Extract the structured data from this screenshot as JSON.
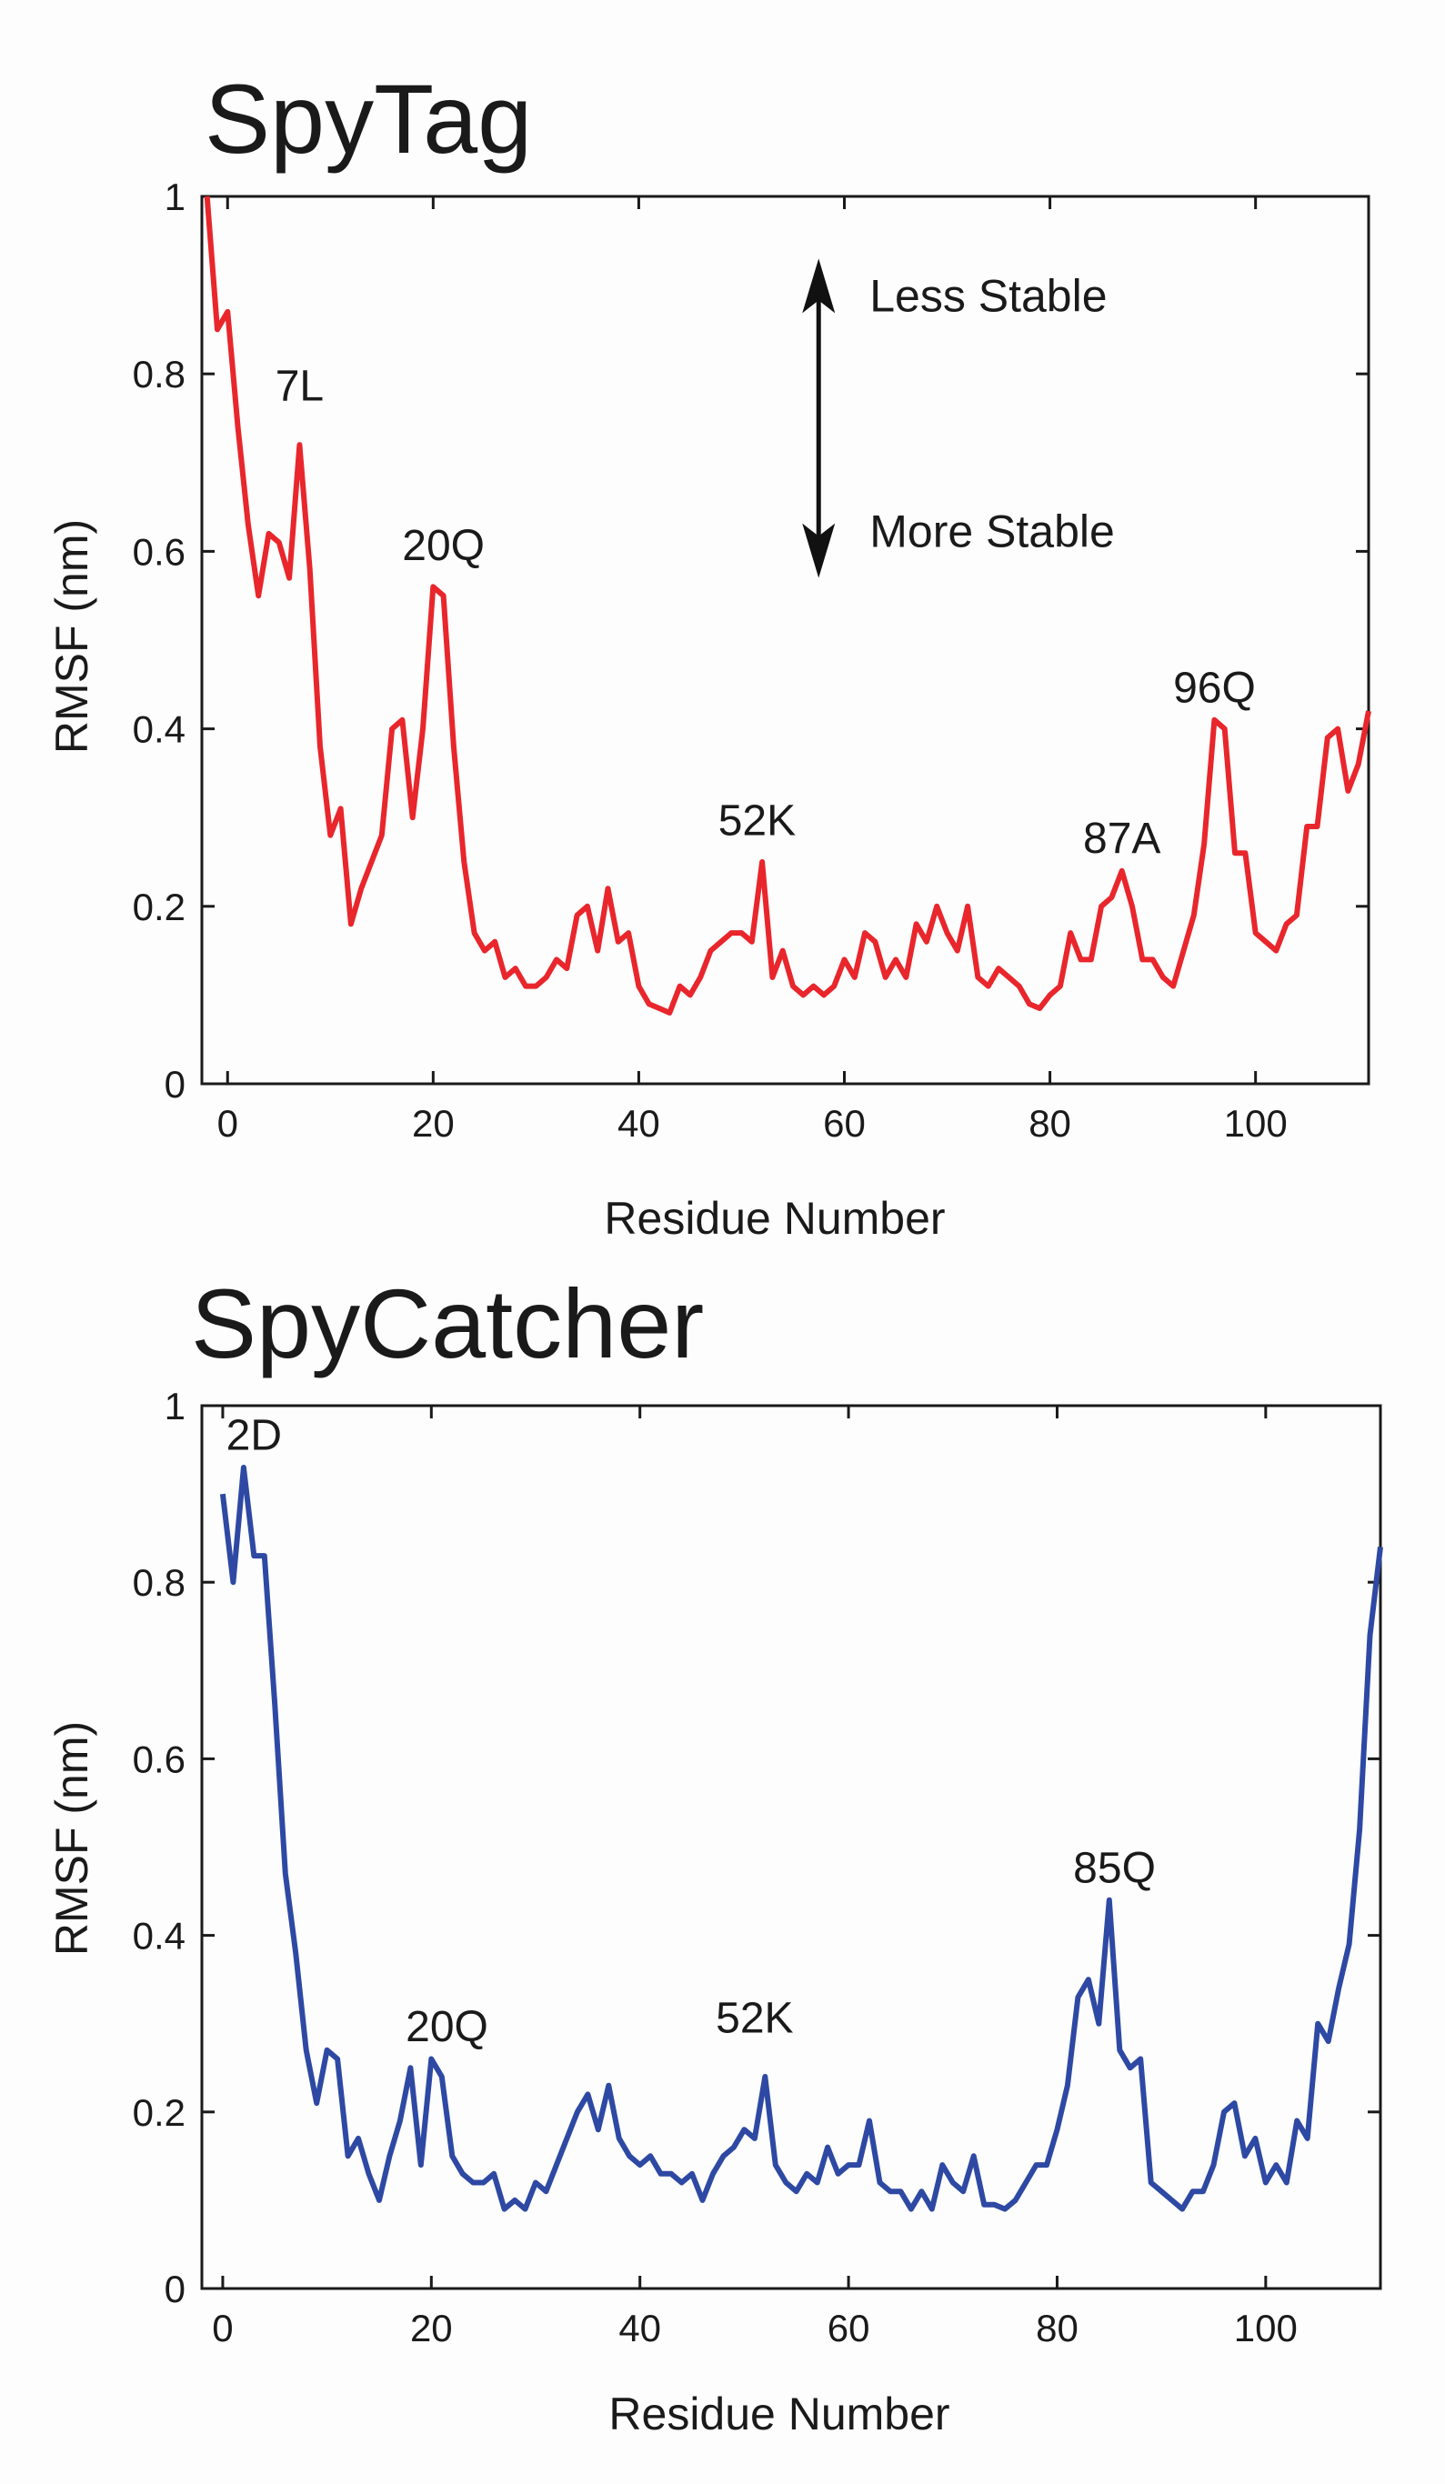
{
  "chart_data": [
    {
      "type": "line",
      "title": "SpyTag",
      "xlabel": "Residue Number",
      "ylabel": "RMSF (nm)",
      "xlim": [
        -2.5,
        111
      ],
      "ylim": [
        0,
        1
      ],
      "xticks": [
        "0",
        "20",
        "40",
        "60",
        "80",
        "100"
      ],
      "yticks": [
        "0",
        "0.2",
        "0.4",
        "0.6",
        "0.8",
        "1"
      ],
      "color": "#e8262c",
      "series": [
        {
          "x": [
            -2,
            -1,
            0,
            1,
            2,
            3,
            4,
            5,
            6,
            7,
            8,
            9,
            10,
            11,
            12,
            13,
            14,
            15,
            16,
            17,
            18,
            19,
            20,
            21,
            22,
            23,
            24,
            25,
            26,
            27,
            28,
            29,
            30,
            31,
            32,
            33,
            34,
            35,
            36,
            37,
            38,
            39,
            40,
            41,
            42,
            43,
            44,
            45,
            46,
            47,
            48,
            49,
            50,
            51,
            52,
            53,
            54,
            55,
            56,
            57,
            58,
            59,
            60,
            61,
            62,
            63,
            64,
            65,
            66,
            67,
            68,
            69,
            70,
            71,
            72,
            73,
            74,
            75,
            76,
            77,
            78,
            79,
            80,
            81,
            82,
            83,
            84,
            85,
            86,
            87,
            88,
            89,
            90,
            91,
            92,
            93,
            94,
            95,
            96,
            97,
            98,
            99,
            100,
            101,
            102,
            103,
            104,
            105,
            106,
            107,
            108,
            109,
            110,
            111
          ],
          "y": [
            1.0,
            0.85,
            0.87,
            0.74,
            0.63,
            0.55,
            0.62,
            0.61,
            0.57,
            0.72,
            0.58,
            0.38,
            0.28,
            0.31,
            0.18,
            0.22,
            0.25,
            0.28,
            0.4,
            0.41,
            0.3,
            0.4,
            0.56,
            0.55,
            0.38,
            0.25,
            0.17,
            0.15,
            0.16,
            0.12,
            0.13,
            0.11,
            0.11,
            0.12,
            0.14,
            0.13,
            0.19,
            0.2,
            0.15,
            0.22,
            0.16,
            0.17,
            0.11,
            0.09,
            0.085,
            0.08,
            0.11,
            0.1,
            0.12,
            0.15,
            0.16,
            0.17,
            0.17,
            0.16,
            0.25,
            0.12,
            0.15,
            0.11,
            0.1,
            0.11,
            0.1,
            0.11,
            0.14,
            0.12,
            0.17,
            0.16,
            0.12,
            0.14,
            0.12,
            0.18,
            0.16,
            0.2,
            0.17,
            0.15,
            0.2,
            0.12,
            0.11,
            0.13,
            0.12,
            0.11,
            0.09,
            0.085,
            0.1,
            0.11,
            0.17,
            0.14,
            0.14,
            0.2,
            0.21,
            0.24,
            0.2,
            0.14,
            0.14,
            0.12,
            0.11,
            0.15,
            0.19,
            0.27,
            0.41,
            0.4,
            0.26,
            0.26,
            0.17,
            0.16,
            0.15,
            0.18,
            0.19,
            0.29,
            0.29,
            0.39,
            0.4,
            0.33,
            0.36,
            0.42
          ]
        }
      ],
      "annotations": [
        {
          "text": "7L",
          "x": 7,
          "y": 0.77
        },
        {
          "text": "20Q",
          "x": 21,
          "y": 0.59
        },
        {
          "text": "52K",
          "x": 51.5,
          "y": 0.28
        },
        {
          "text": "87A",
          "x": 87,
          "y": 0.26
        },
        {
          "text": "96Q",
          "x": 96,
          "y": 0.43
        }
      ],
      "arrow": {
        "top_label": "Less Stable",
        "bottom_label": "More Stable",
        "x": 57.5,
        "y_top": 0.93,
        "y_bottom": 0.57
      }
    },
    {
      "type": "line",
      "title": "SpyCatcher",
      "xlabel": "Residue Number",
      "ylabel": "RMSF (nm)",
      "xlim": [
        -2,
        111
      ],
      "ylim": [
        0,
        1
      ],
      "xticks": [
        "0",
        "20",
        "40",
        "60",
        "80",
        "100"
      ],
      "yticks": [
        "0",
        "0.2",
        "0.4",
        "0.6",
        "0.8",
        "1"
      ],
      "color": "#2e49a3",
      "series": [
        {
          "x": [
            0,
            1,
            2,
            3,
            4,
            5,
            6,
            7,
            8,
            9,
            10,
            11,
            12,
            13,
            14,
            15,
            16,
            17,
            18,
            19,
            20,
            21,
            22,
            23,
            24,
            25,
            26,
            27,
            28,
            29,
            30,
            31,
            32,
            33,
            34,
            35,
            36,
            37,
            38,
            39,
            40,
            41,
            42,
            43,
            44,
            45,
            46,
            47,
            48,
            49,
            50,
            51,
            52,
            53,
            54,
            55,
            56,
            57,
            58,
            59,
            60,
            61,
            62,
            63,
            64,
            65,
            66,
            67,
            68,
            69,
            70,
            71,
            72,
            73,
            74,
            75,
            76,
            77,
            78,
            79,
            80,
            81,
            82,
            83,
            84,
            85,
            86,
            87,
            88,
            89,
            90,
            91,
            92,
            93,
            94,
            95,
            96,
            97,
            98,
            99,
            100,
            101,
            102,
            103,
            104,
            105,
            106,
            107,
            108,
            109,
            110,
            111
          ],
          "y": [
            0.9,
            0.8,
            0.93,
            0.83,
            0.83,
            0.66,
            0.47,
            0.38,
            0.27,
            0.21,
            0.27,
            0.26,
            0.15,
            0.17,
            0.13,
            0.1,
            0.15,
            0.19,
            0.25,
            0.14,
            0.26,
            0.24,
            0.15,
            0.13,
            0.12,
            0.12,
            0.13,
            0.09,
            0.1,
            0.09,
            0.12,
            0.11,
            0.14,
            0.17,
            0.2,
            0.22,
            0.18,
            0.23,
            0.17,
            0.15,
            0.14,
            0.15,
            0.13,
            0.13,
            0.12,
            0.13,
            0.1,
            0.13,
            0.15,
            0.16,
            0.18,
            0.17,
            0.24,
            0.14,
            0.12,
            0.11,
            0.13,
            0.12,
            0.16,
            0.13,
            0.14,
            0.14,
            0.19,
            0.12,
            0.11,
            0.11,
            0.09,
            0.11,
            0.09,
            0.14,
            0.12,
            0.11,
            0.15,
            0.095,
            0.095,
            0.09,
            0.1,
            0.12,
            0.14,
            0.14,
            0.18,
            0.23,
            0.33,
            0.35,
            0.3,
            0.44,
            0.27,
            0.25,
            0.26,
            0.12,
            0.11,
            0.1,
            0.09,
            0.11,
            0.11,
            0.14,
            0.2,
            0.21,
            0.15,
            0.17,
            0.12,
            0.14,
            0.12,
            0.19,
            0.17,
            0.3,
            0.28,
            0.34,
            0.39,
            0.52,
            0.74,
            0.84
          ]
        }
      ],
      "annotations": [
        {
          "text": "2D",
          "x": 3,
          "y": 0.95
        },
        {
          "text": "20Q",
          "x": 21.5,
          "y": 0.28
        },
        {
          "text": "52K",
          "x": 51,
          "y": 0.29
        },
        {
          "text": "85Q",
          "x": 85.5,
          "y": 0.46
        }
      ]
    }
  ]
}
